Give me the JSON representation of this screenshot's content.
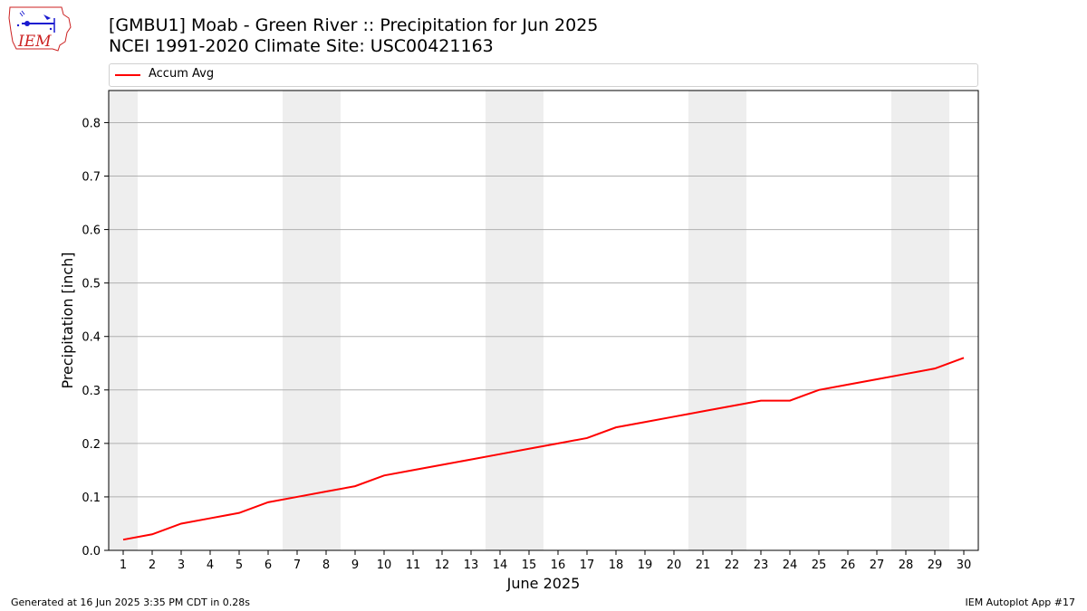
{
  "header": {
    "title_line1": "[GMBU1] Moab - Green River :: Precipitation for Jun 2025",
    "title_line2": "NCEI 1991-2020 Climate Site: USC00421163"
  },
  "logo": {
    "text": "IEM"
  },
  "footer": {
    "left": "Generated at 16 Jun 2025 3:35 PM CDT in 0.28s",
    "right": "IEM Autoplot App #17"
  },
  "chart_data": {
    "type": "line",
    "xlabel": "June 2025",
    "ylabel": "Precipitation [inch]",
    "xlim": [
      0.5,
      30.5
    ],
    "ylim": [
      0.0,
      0.86
    ],
    "yticks": [
      0.0,
      0.1,
      0.2,
      0.3,
      0.4,
      0.5,
      0.6,
      0.7,
      0.8
    ],
    "ytick_labels": [
      "0.0",
      "0.1",
      "0.2",
      "0.3",
      "0.4",
      "0.5",
      "0.6",
      "0.7",
      "0.8"
    ],
    "x_ticks": [
      "1",
      "2",
      "3",
      "4",
      "5",
      "6",
      "7",
      "8",
      "9",
      "10",
      "11",
      "12",
      "13",
      "14",
      "15",
      "16",
      "17",
      "18",
      "19",
      "20",
      "21",
      "22",
      "23",
      "24",
      "25",
      "26",
      "27",
      "28",
      "29",
      "30"
    ],
    "grid": "horizontal",
    "legend_position": "top",
    "weekend_bands": [
      [
        0.5,
        1.5
      ],
      [
        6.5,
        8.5
      ],
      [
        13.5,
        15.5
      ],
      [
        20.5,
        22.5
      ],
      [
        27.5,
        29.5
      ]
    ],
    "band_color": "#eeeeee",
    "series": [
      {
        "name": "Accum Avg",
        "color": "#ff0000",
        "x": [
          1,
          2,
          3,
          4,
          5,
          6,
          7,
          8,
          9,
          10,
          11,
          12,
          13,
          14,
          15,
          16,
          17,
          18,
          19,
          20,
          21,
          22,
          23,
          24,
          25,
          26,
          27,
          28,
          29,
          30
        ],
        "values": [
          0.02,
          0.03,
          0.05,
          0.06,
          0.07,
          0.09,
          0.1,
          0.11,
          0.12,
          0.14,
          0.15,
          0.16,
          0.17,
          0.18,
          0.19,
          0.2,
          0.21,
          0.23,
          0.24,
          0.25,
          0.26,
          0.27,
          0.28,
          0.28,
          0.3,
          0.31,
          0.32,
          0.33,
          0.34,
          0.36
        ]
      }
    ]
  }
}
